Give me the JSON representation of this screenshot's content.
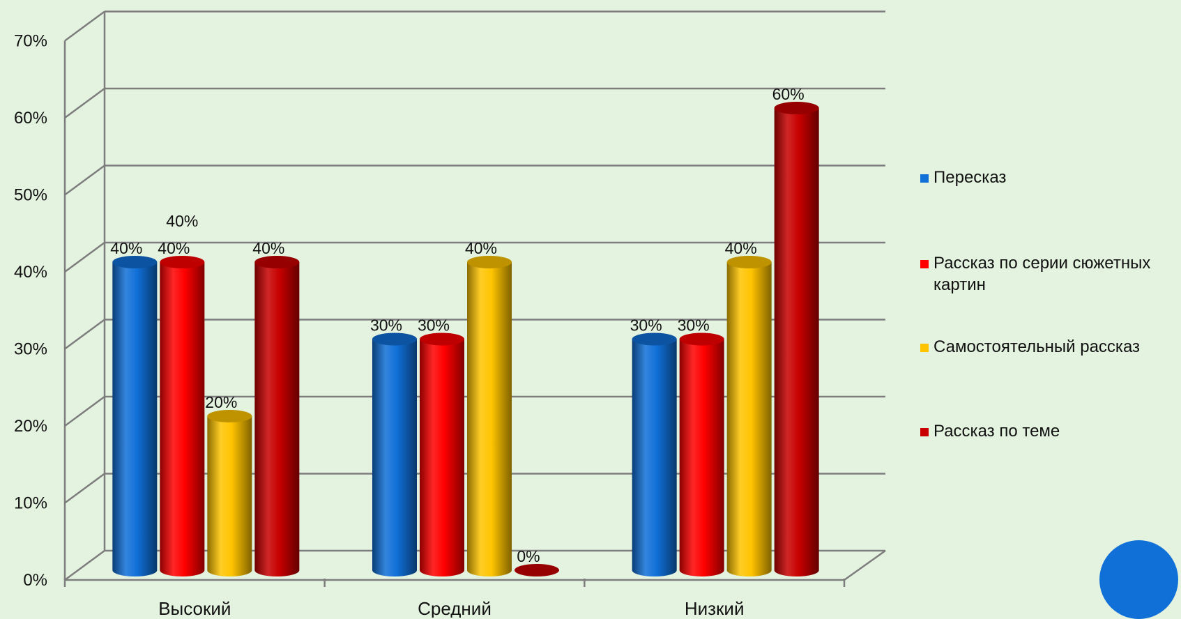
{
  "chart_data": {
    "type": "bar",
    "style": "3d-cylinder",
    "categories": [
      "Высокий",
      "Средний",
      "Низкий"
    ],
    "series": [
      {
        "name": "Пересказ",
        "color": "#1070d8",
        "values": [
          40,
          30,
          30
        ],
        "labels": [
          "40%",
          "30%",
          "30%"
        ]
      },
      {
        "name": "Рассказ по серии сюжетных картин",
        "legend_lines": [
          "Рассказ по серии сюжетных",
          "картин"
        ],
        "color": "#ff0000",
        "values": [
          40,
          30,
          30
        ],
        "labels": [
          "40%",
          "30%",
          "30%"
        ]
      },
      {
        "name": "Самостоятельный рассказ",
        "color": "#ffc400",
        "values": [
          20,
          40,
          40
        ],
        "labels": [
          "20%",
          "40%",
          "40%"
        ]
      },
      {
        "name": "Рассказ по теме",
        "color": "#c80000",
        "values": [
          40,
          0,
          60
        ],
        "labels": [
          "40%",
          "0%",
          "60%"
        ]
      }
    ],
    "extra_labels": [
      "40%"
    ],
    "yticks": [
      "0%",
      "10%",
      "20%",
      "30%",
      "40%",
      "50%",
      "60%",
      "70%"
    ],
    "ylim": [
      0,
      70
    ],
    "grid": true,
    "legend": "right"
  },
  "decor": {
    "circle_color": "#1070d8"
  }
}
